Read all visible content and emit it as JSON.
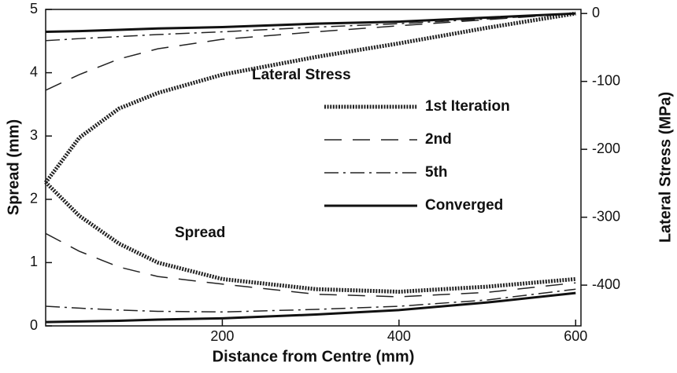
{
  "chart_data": {
    "type": "line",
    "xlabel": "Distance from Centre (mm)",
    "ylabel": "Spread (mm)",
    "y2label": "Lateral Stress (MPa)",
    "annotations": [
      "Lateral Stress",
      "Spread"
    ],
    "x": [
      0,
      38,
      83,
      127,
      200,
      306,
      400,
      500,
      600
    ],
    "xlim": [
      0,
      606
    ],
    "xticks": [
      200,
      400,
      600
    ],
    "ylim": [
      0,
      5
    ],
    "yticks": [
      0,
      1,
      2,
      3,
      4,
      5
    ],
    "y2lim": [
      -460,
      6
    ],
    "y2ticks": [
      0,
      -100,
      -200,
      -300,
      -400
    ],
    "series": [
      {
        "name": "1st Iteration",
        "axis": "y2",
        "style": "dotted",
        "color": "#222222",
        "values": [
          -249,
          -183,
          -140,
          -117,
          -90,
          -64,
          -44,
          -21,
          0
        ]
      },
      {
        "name": "2nd",
        "axis": "y2",
        "style": "dashed",
        "color": "#222222",
        "values": [
          -113,
          -90,
          -67,
          -52,
          -38,
          -27,
          -18,
          -9,
          0
        ]
      },
      {
        "name": "5th",
        "axis": "y2",
        "style": "dashdot",
        "color": "#222222",
        "values": [
          -40,
          -37,
          -34,
          -31,
          -27,
          -20,
          -15,
          -8,
          0
        ]
      },
      {
        "name": "Converged",
        "axis": "y2",
        "style": "solid",
        "color": "#111111",
        "values": [
          -27,
          -26,
          -24,
          -22,
          -20,
          -15,
          -12,
          -6,
          0
        ]
      },
      {
        "axis": "y",
        "style": "dotted",
        "color": "#222222",
        "values": [
          2.27,
          1.74,
          1.3,
          1.0,
          0.74,
          0.58,
          0.54,
          0.62,
          0.74
        ]
      },
      {
        "axis": "y",
        "style": "dashed",
        "color": "#222222",
        "values": [
          1.46,
          1.18,
          0.93,
          0.78,
          0.66,
          0.5,
          0.46,
          0.53,
          0.68
        ]
      },
      {
        "axis": "y",
        "style": "dashdot",
        "color": "#222222",
        "values": [
          0.31,
          0.28,
          0.25,
          0.23,
          0.22,
          0.26,
          0.31,
          0.41,
          0.58
        ]
      },
      {
        "axis": "y",
        "style": "solid",
        "color": "#111111",
        "values": [
          0.06,
          0.07,
          0.08,
          0.1,
          0.12,
          0.18,
          0.25,
          0.37,
          0.52
        ]
      }
    ]
  }
}
